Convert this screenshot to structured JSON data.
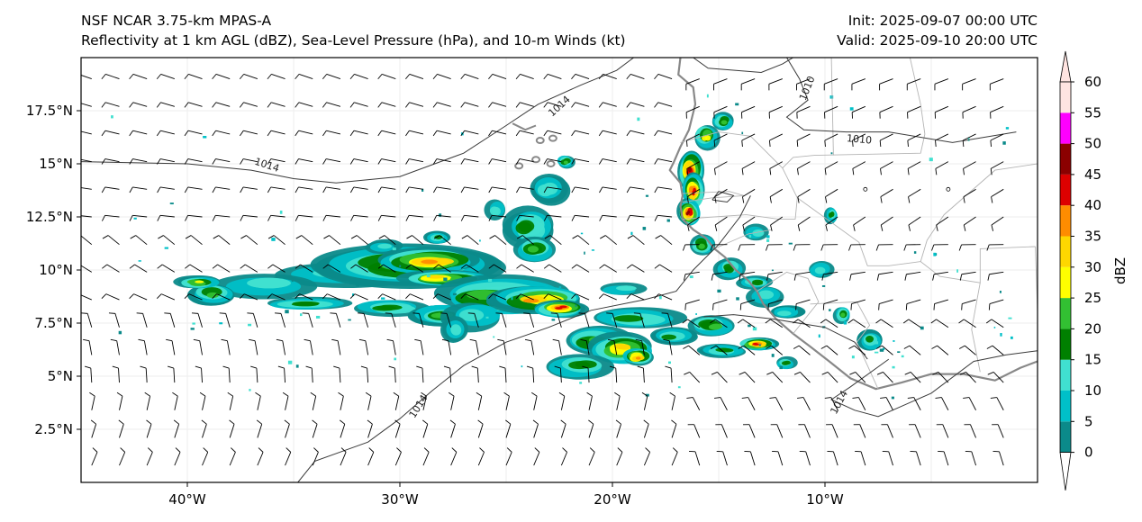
{
  "title_left_line1": "NSF NCAR 3.75-km MPAS-A",
  "title_left_line2": "Reflectivity at 1 km AGL (dBZ), Sea-Level Pressure (hPa), and 10-m Winds (kt)",
  "title_right_line1": "Init: 2025-09-07 00:00 UTC",
  "title_right_line2": "Valid: 2025-09-10 20:00 UTC",
  "extent": {
    "lon_min": -45,
    "lon_max": 0,
    "lat_min": 0,
    "lat_max": 20
  },
  "lat_ticks": [
    {
      "value": 17.5,
      "label": "17.5°N"
    },
    {
      "value": 15,
      "label": "15°N"
    },
    {
      "value": 12.5,
      "label": "12.5°N"
    },
    {
      "value": 10,
      "label": "10°N"
    },
    {
      "value": 7.5,
      "label": "7.5°N"
    },
    {
      "value": 5,
      "label": "5°N"
    },
    {
      "value": 2.5,
      "label": "2.5°N"
    }
  ],
  "lon_ticks": [
    {
      "value": -40,
      "label": "40°W"
    },
    {
      "value": -30,
      "label": "30°W"
    },
    {
      "value": -20,
      "label": "20°W"
    },
    {
      "value": -10,
      "label": "10°W"
    }
  ],
  "colorbar": {
    "label": "dBZ",
    "ticks": [
      "0",
      "5",
      "10",
      "15",
      "20",
      "25",
      "30",
      "35",
      "40",
      "45",
      "50",
      "55",
      "60"
    ],
    "colors": [
      "#0b8a8a",
      "#00c0c8",
      "#40e0d0",
      "#008000",
      "#32c032",
      "#ffff00",
      "#ffd700",
      "#ff8c00",
      "#dd0000",
      "#8b0000",
      "#ff00ff",
      "#ffe4e1"
    ]
  },
  "isobars": [
    {
      "value": "1014",
      "label_lon": -36.3,
      "label_lat": 14.8,
      "label_rot": 18
    },
    {
      "value": "1014",
      "label_lon": -22.4,
      "label_lat": 17.6,
      "label_rot": -42
    },
    {
      "value": "1010",
      "label_lon": -10.7,
      "label_lat": 18.5,
      "label_rot": -68
    },
    {
      "value": "1010",
      "label_lon": -8.4,
      "label_lat": 16.0,
      "label_rot": 5
    },
    {
      "value": "1014",
      "label_lon": -29.0,
      "label_lat": 3.5,
      "label_rot": -58
    },
    {
      "value": "1014",
      "label_lon": -9.2,
      "label_lat": 3.7,
      "label_rot": -62
    }
  ]
}
